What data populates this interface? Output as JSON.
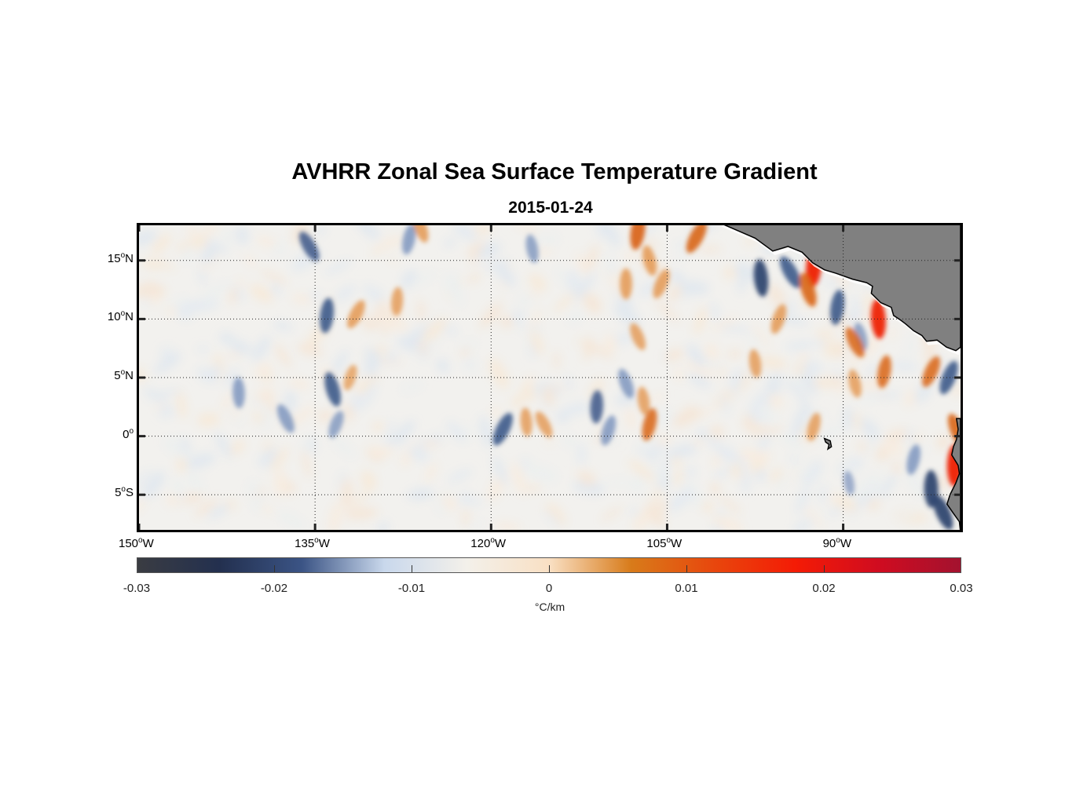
{
  "title": "AVHRR Zonal Sea Surface Temperature Gradient",
  "subtitle": "2015-01-24",
  "map": {
    "lon_range": [
      -150,
      -80
    ],
    "lat_range": [
      -8,
      18
    ],
    "lon_ticks": [
      {
        "value": -150,
        "deg": "150",
        "hem": "W"
      },
      {
        "value": -135,
        "deg": "135",
        "hem": "W"
      },
      {
        "value": -120,
        "deg": "120",
        "hem": "W"
      },
      {
        "value": -105,
        "deg": "105",
        "hem": "W"
      },
      {
        "value": -90,
        "deg": "90",
        "hem": "W"
      }
    ],
    "lat_ticks": [
      {
        "value": 15,
        "deg": "15",
        "hem": "N"
      },
      {
        "value": 10,
        "deg": "10",
        "hem": "N"
      },
      {
        "value": 5,
        "deg": "5",
        "hem": "N"
      },
      {
        "value": 0,
        "deg": "0",
        "hem": ""
      },
      {
        "value": -5,
        "deg": "5",
        "hem": "S"
      }
    ],
    "grid": "dotted",
    "land_color": "#808080",
    "ocean_background": "#f2f1ee"
  },
  "colorbar": {
    "min": -0.03,
    "max": 0.03,
    "ticks": [
      "-0.03",
      "-0.02",
      "-0.01",
      "0",
      "0.01",
      "0.02",
      "0.03"
    ],
    "unit": "°C/km",
    "colors": [
      "#3a3c42",
      "#23304f",
      "#3b5485",
      "#c9d8ec",
      "#f3f0ea",
      "#f9e0c4",
      "#d87b1a",
      "#e8470d",
      "#f41b05",
      "#d00c20",
      "#a3122f"
    ]
  },
  "features": [
    {
      "kind": "negative",
      "lon": -135.5,
      "lat": 16.2,
      "strength": 0.8
    },
    {
      "kind": "negative",
      "lon": -134.0,
      "lat": 10.3,
      "strength": 0.9
    },
    {
      "kind": "negative",
      "lon": -133.5,
      "lat": 4.0,
      "strength": 0.9
    },
    {
      "kind": "negative",
      "lon": -133.2,
      "lat": 1.0,
      "strength": 0.6
    },
    {
      "kind": "negative",
      "lon": -141.5,
      "lat": 3.7,
      "strength": 0.7
    },
    {
      "kind": "negative",
      "lon": -137.5,
      "lat": 1.5,
      "strength": 0.7
    },
    {
      "kind": "negative",
      "lon": -127.0,
      "lat": 16.8,
      "strength": 0.7
    },
    {
      "kind": "negative",
      "lon": -116.5,
      "lat": 16.0,
      "strength": 0.6
    },
    {
      "kind": "negative",
      "lon": -119.0,
      "lat": 0.6,
      "strength": 0.9
    },
    {
      "kind": "negative",
      "lon": -111.0,
      "lat": 2.5,
      "strength": 0.8
    },
    {
      "kind": "negative",
      "lon": -108.5,
      "lat": 4.5,
      "strength": 0.7
    },
    {
      "kind": "negative",
      "lon": -110.0,
      "lat": 0.5,
      "strength": 0.7
    },
    {
      "kind": "negative",
      "lon": -97.0,
      "lat": 13.5,
      "strength": 1.0
    },
    {
      "kind": "negative",
      "lon": -94.5,
      "lat": 14.0,
      "strength": 0.9
    },
    {
      "kind": "negative",
      "lon": -90.5,
      "lat": 11.0,
      "strength": 0.9
    },
    {
      "kind": "negative",
      "lon": -88.5,
      "lat": 8.5,
      "strength": 0.6
    },
    {
      "kind": "negative",
      "lon": -81.0,
      "lat": 5.0,
      "strength": 0.9
    },
    {
      "kind": "negative",
      "lon": -82.5,
      "lat": -4.5,
      "strength": 1.0
    },
    {
      "kind": "negative",
      "lon": -81.5,
      "lat": -6.5,
      "strength": 1.0
    },
    {
      "kind": "negative",
      "lon": -84.0,
      "lat": -2.0,
      "strength": 0.7
    },
    {
      "kind": "negative",
      "lon": -89.5,
      "lat": -4.0,
      "strength": 0.4
    },
    {
      "kind": "positive",
      "lon": -131.5,
      "lat": 10.4,
      "strength": 0.7
    },
    {
      "kind": "positive",
      "lon": -128.0,
      "lat": 11.5,
      "strength": 0.6
    },
    {
      "kind": "positive",
      "lon": -126.0,
      "lat": 17.8,
      "strength": 0.7
    },
    {
      "kind": "positive",
      "lon": -132.0,
      "lat": 5.0,
      "strength": 0.5
    },
    {
      "kind": "positive",
      "lon": -117.0,
      "lat": 1.2,
      "strength": 0.6
    },
    {
      "kind": "positive",
      "lon": -115.5,
      "lat": 1.0,
      "strength": 0.6
    },
    {
      "kind": "positive",
      "lon": -107.5,
      "lat": 17.5,
      "strength": 1.0
    },
    {
      "kind": "positive",
      "lon": -106.5,
      "lat": 15.0,
      "strength": 0.7
    },
    {
      "kind": "positive",
      "lon": -105.5,
      "lat": 13.0,
      "strength": 0.7
    },
    {
      "kind": "positive",
      "lon": -108.5,
      "lat": 13.0,
      "strength": 0.7
    },
    {
      "kind": "positive",
      "lon": -107.5,
      "lat": 8.5,
      "strength": 0.6
    },
    {
      "kind": "positive",
      "lon": -106.5,
      "lat": 1.0,
      "strength": 0.8
    },
    {
      "kind": "positive",
      "lon": -107.0,
      "lat": 3.0,
      "strength": 0.6
    },
    {
      "kind": "positive",
      "lon": -102.5,
      "lat": 17.0,
      "strength": 0.9
    },
    {
      "kind": "positive",
      "lon": -92.5,
      "lat": 14.5,
      "strength": 1.2
    },
    {
      "kind": "positive",
      "lon": -93.0,
      "lat": 12.5,
      "strength": 0.9
    },
    {
      "kind": "positive",
      "lon": -95.5,
      "lat": 10.0,
      "strength": 0.7
    },
    {
      "kind": "positive",
      "lon": -87.0,
      "lat": 10.0,
      "strength": 1.1
    },
    {
      "kind": "positive",
      "lon": -89.0,
      "lat": 8.0,
      "strength": 0.8
    },
    {
      "kind": "positive",
      "lon": -86.5,
      "lat": 5.5,
      "strength": 0.8
    },
    {
      "kind": "positive",
      "lon": -89.0,
      "lat": 4.5,
      "strength": 0.6
    },
    {
      "kind": "positive",
      "lon": -82.5,
      "lat": 5.5,
      "strength": 0.8
    },
    {
      "kind": "positive",
      "lon": -80.5,
      "lat": -2.5,
      "strength": 1.2
    },
    {
      "kind": "positive",
      "lon": -80.3,
      "lat": 0.5,
      "strength": 0.9
    },
    {
      "kind": "positive",
      "lon": -92.5,
      "lat": 0.8,
      "strength": 0.6
    },
    {
      "kind": "positive",
      "lon": -97.5,
      "lat": 6.2,
      "strength": 0.6
    }
  ]
}
